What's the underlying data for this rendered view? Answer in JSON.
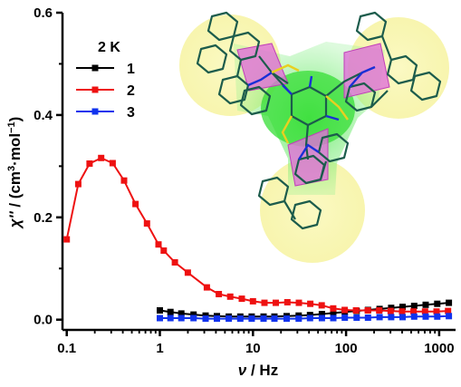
{
  "chart_data": {
    "type": "line",
    "xscale": "log",
    "xlim": [
      0.09,
      1500
    ],
    "ylim": [
      -0.02,
      0.6
    ],
    "xticks": [
      0.1,
      1,
      10,
      100,
      1000
    ],
    "xtick_labels": [
      "0.1",
      "1",
      "10",
      "100",
      "1000"
    ],
    "yticks": [
      0.0,
      0.2,
      0.4,
      0.6
    ],
    "ytick_labels": [
      "0.0",
      "0.2",
      "0.4",
      "0.6"
    ],
    "xlabel_main": "ν",
    "xlabel_unit": " / Hz",
    "ylabel_main": "χ''",
    "ylabel_unit": " / (cm",
    "ylabel_sup1": "3",
    "ylabel_mid": "·mol",
    "ylabel_sup2": "−1",
    "ylabel_end": ")",
    "legend_title": "2 K",
    "legend_position": "top-left",
    "series": [
      {
        "name": "1",
        "color": "#000000",
        "x": [
          1.0,
          1.3,
          1.7,
          2.3,
          3.1,
          4.1,
          5.5,
          7.3,
          9.7,
          13,
          17,
          23,
          31,
          41,
          55,
          73,
          97,
          130,
          172,
          229,
          305,
          405,
          539,
          717,
          955,
          1270
        ],
        "y": [
          0.018,
          0.015,
          0.012,
          0.01,
          0.008,
          0.007,
          0.006,
          0.006,
          0.006,
          0.006,
          0.006,
          0.007,
          0.008,
          0.009,
          0.011,
          0.013,
          0.015,
          0.017,
          0.019,
          0.021,
          0.023,
          0.025,
          0.027,
          0.029,
          0.031,
          0.033
        ]
      },
      {
        "name": "2",
        "color": "#ee1111",
        "x": [
          0.1,
          0.133,
          0.176,
          0.234,
          0.311,
          0.413,
          0.548,
          0.728,
          0.967,
          1.1,
          1.45,
          2.0,
          3.2,
          4.3,
          5.7,
          7.6,
          10,
          13.3,
          17.6,
          23.4,
          31.1,
          41.3,
          54.8,
          72.8,
          96.7,
          128,
          171,
          227,
          301,
          400,
          531,
          705,
          937,
          1245
        ],
        "y": [
          0.157,
          0.265,
          0.305,
          0.316,
          0.306,
          0.272,
          0.226,
          0.188,
          0.147,
          0.135,
          0.112,
          0.092,
          0.063,
          0.05,
          0.045,
          0.041,
          0.036,
          0.033,
          0.033,
          0.034,
          0.033,
          0.031,
          0.028,
          0.022,
          0.019,
          0.018,
          0.018,
          0.018,
          0.017,
          0.016,
          0.016,
          0.016,
          0.016,
          0.017
        ]
      },
      {
        "name": "3",
        "color": "#1133ee",
        "x": [
          1.0,
          1.3,
          1.7,
          2.3,
          3.1,
          4.1,
          5.5,
          7.3,
          9.7,
          13,
          17,
          23,
          31,
          41,
          55,
          73,
          97,
          130,
          172,
          229,
          305,
          405,
          539,
          717,
          955,
          1270
        ],
        "y": [
          0.003,
          0.003,
          0.003,
          0.003,
          0.002,
          0.002,
          0.002,
          0.002,
          0.002,
          0.002,
          0.002,
          0.002,
          0.002,
          0.003,
          0.003,
          0.003,
          0.004,
          0.004,
          0.004,
          0.005,
          0.005,
          0.005,
          0.006,
          0.006,
          0.006,
          0.007
        ]
      }
    ]
  },
  "inset": {
    "halo_color": "#f6f3a0",
    "glow_color": "#4fe04f",
    "polyhedron_color": "#e070d8",
    "bond_color": "#1c5c4c",
    "nitrogen_color": "#1a2fd6",
    "sulfur_color": "#e8d020"
  }
}
